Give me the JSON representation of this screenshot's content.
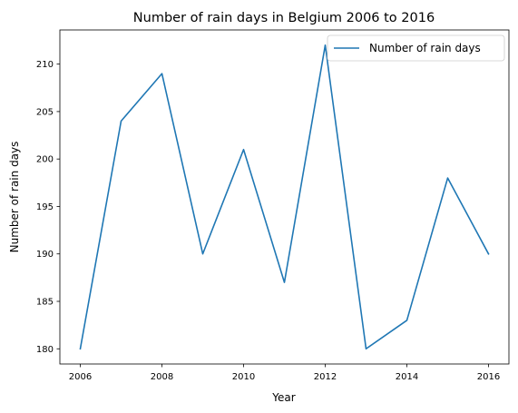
{
  "chart_data": {
    "type": "line",
    "title": "Number of rain days in Belgium 2006 to 2016",
    "xlabel": "Year",
    "ylabel": "Number of rain days",
    "x": [
      2006,
      2007,
      2008,
      2009,
      2010,
      2011,
      2012,
      2013,
      2014,
      2015,
      2016
    ],
    "series": [
      {
        "name": "Number of rain days",
        "values": [
          180,
          204,
          209,
          190,
          201,
          187,
          212,
          180,
          183,
          198,
          190
        ],
        "color": "#1f77b4"
      }
    ],
    "xlim": [
      2005.5,
      2016.5
    ],
    "ylim": [
      178.4,
      213.6
    ],
    "xticks": [
      "2006",
      "2008",
      "2010",
      "2012",
      "2014",
      "2016"
    ],
    "yticks": [
      "180",
      "185",
      "190",
      "195",
      "200",
      "205",
      "210"
    ],
    "grid": false,
    "legend": "top-right"
  }
}
